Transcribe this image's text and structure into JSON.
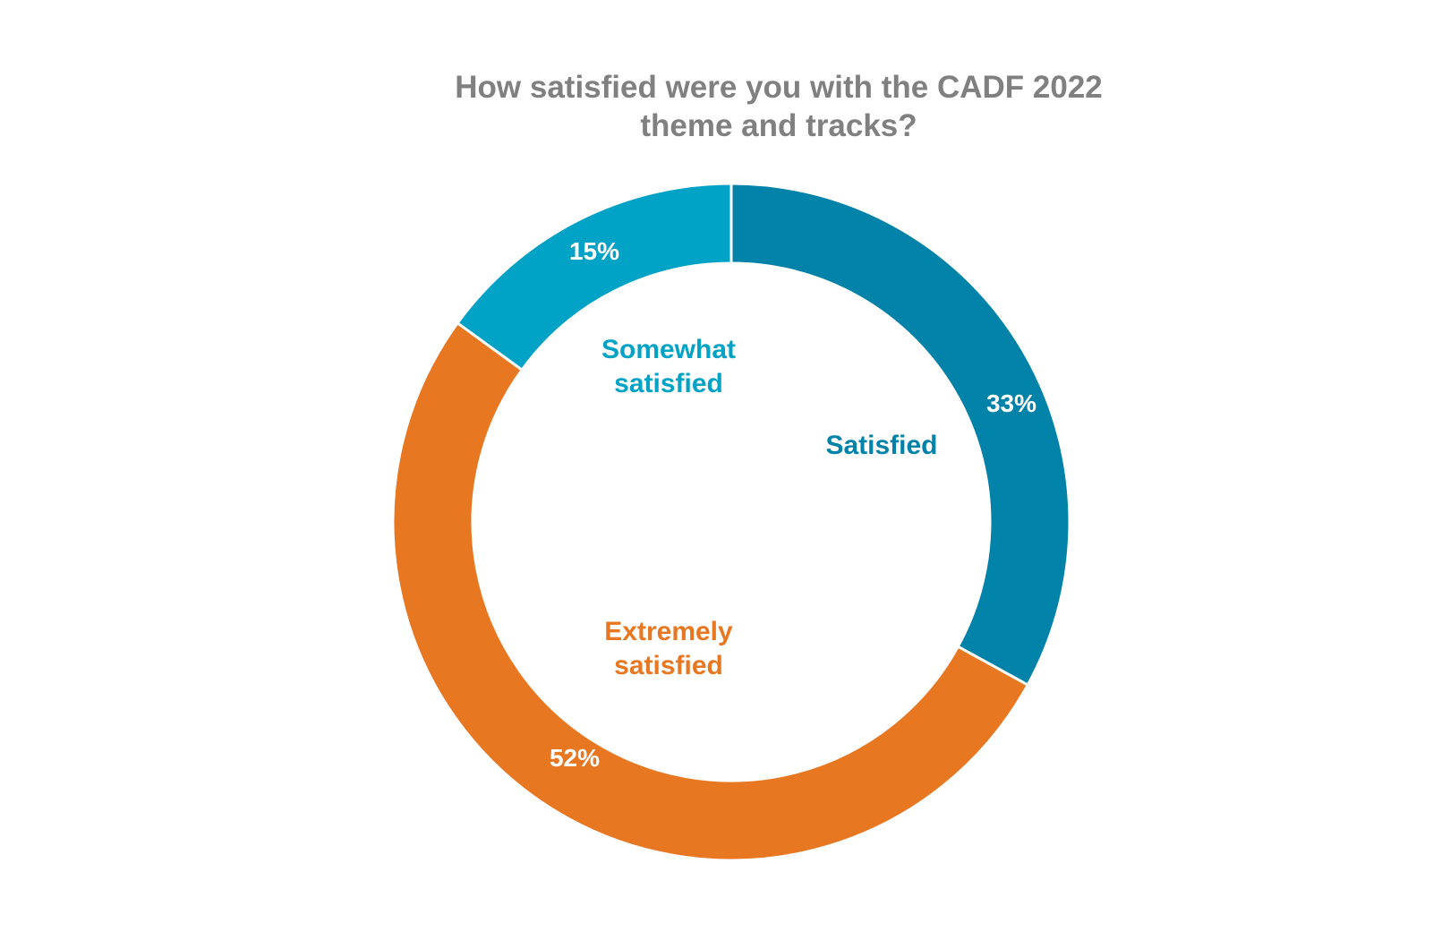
{
  "chart_data": {
    "type": "pie",
    "subtype": "donut",
    "title_lines": [
      "How satisfied were you with the CADF 2022",
      "theme and tracks?"
    ],
    "categories": [
      "Satisfied",
      "Extremely satisfied",
      "Somewhat satisfied"
    ],
    "category_label_lines": [
      [
        "Satisfied"
      ],
      [
        "Extremely",
        "satisfied"
      ],
      [
        "Somewhat",
        "satisfied"
      ]
    ],
    "values": [
      33,
      52,
      15
    ],
    "value_labels": [
      "33%",
      "52%",
      "15%"
    ],
    "colors": [
      "#0082A9",
      "#E87722",
      "#00A2C6"
    ],
    "title_color": "#808080",
    "legend": "none"
  }
}
